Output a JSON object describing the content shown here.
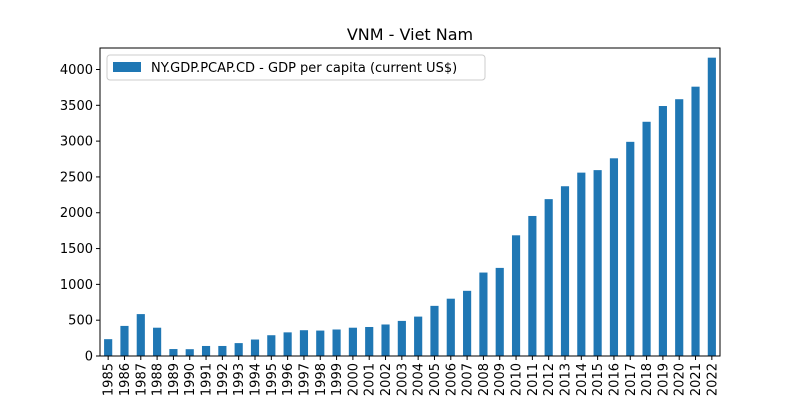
{
  "chart_data": {
    "type": "bar",
    "title": "VNM - Viet Nam",
    "xlabel": "",
    "ylabel": "",
    "ylim": [
      0,
      4300
    ],
    "yticks": [
      0,
      500,
      1000,
      1500,
      2000,
      2500,
      3000,
      3500,
      4000
    ],
    "grid": false,
    "legend_position": "top-left",
    "bar_color": "#1f77b4",
    "categories": [
      "1985",
      "1986",
      "1987",
      "1988",
      "1989",
      "1990",
      "1991",
      "1992",
      "1993",
      "1994",
      "1995",
      "1996",
      "1997",
      "1998",
      "1999",
      "2000",
      "2001",
      "2002",
      "2003",
      "2004",
      "2005",
      "2006",
      "2007",
      "2008",
      "2009",
      "2010",
      "2011",
      "2012",
      "2013",
      "2014",
      "2015",
      "2016",
      "2017",
      "2018",
      "2019",
      "2020",
      "2021",
      "2022"
    ],
    "series": [
      {
        "name": "NY.GDP.PCAP.CD - GDP per capita (current US$)",
        "values": [
          235,
          420,
          585,
          395,
          97,
          95,
          140,
          140,
          180,
          230,
          290,
          330,
          360,
          355,
          370,
          395,
          405,
          440,
          490,
          550,
          700,
          800,
          910,
          1165,
          1230,
          1685,
          1955,
          2190,
          2370,
          2560,
          2595,
          2760,
          2990,
          3270,
          3490,
          3585,
          3760,
          4165
        ]
      }
    ]
  }
}
